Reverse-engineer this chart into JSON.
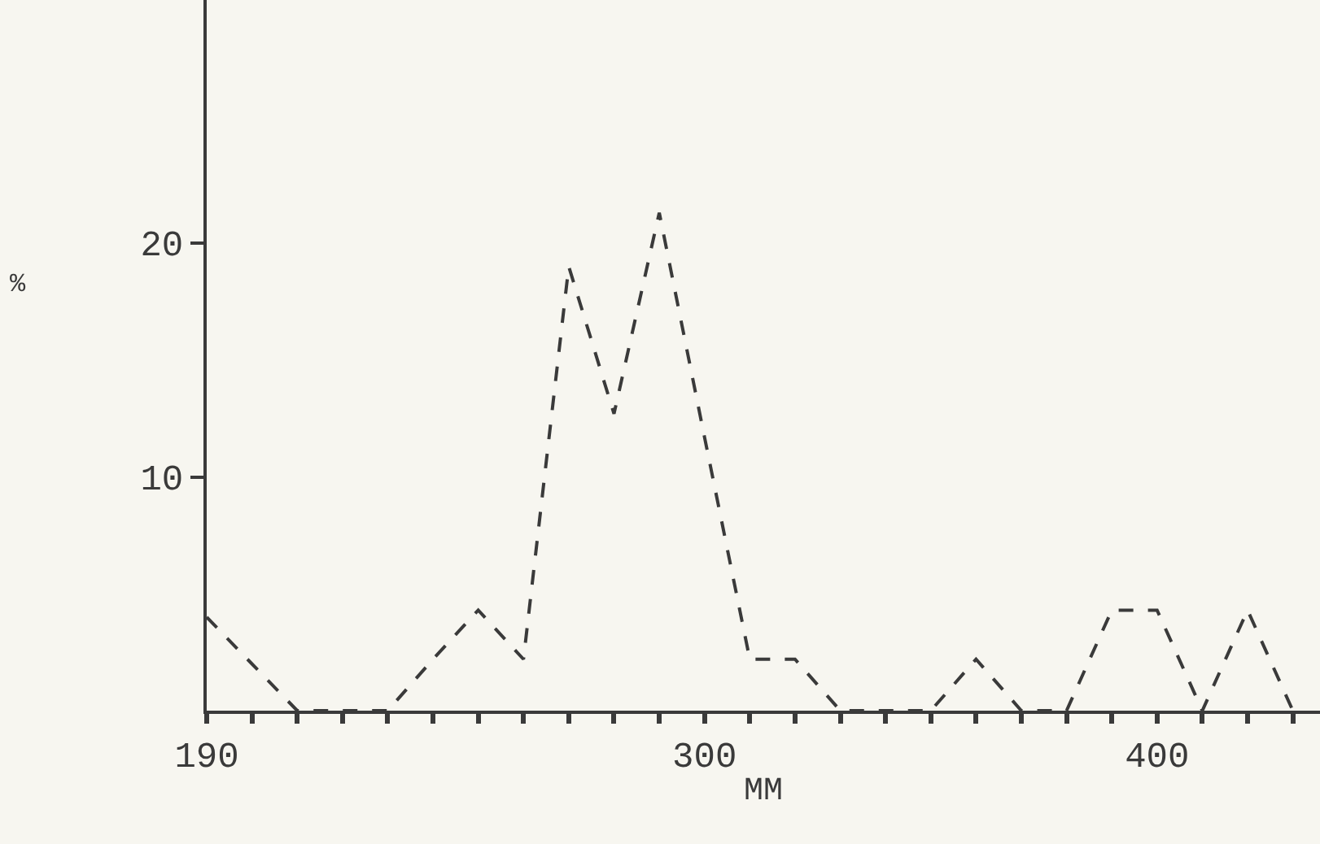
{
  "chart_data": {
    "type": "line",
    "xlabel": "MM",
    "ylabel": "%",
    "x": [
      190,
      200,
      210,
      220,
      230,
      240,
      250,
      260,
      270,
      280,
      290,
      300,
      310,
      320,
      330,
      340,
      350,
      360,
      370,
      380,
      390,
      400,
      410,
      420,
      430
    ],
    "series": [
      {
        "color": "#3a3a3a",
        "values": [
          4,
          2,
          0,
          0,
          0,
          2.2,
          4.3,
          2.2,
          19,
          12.7,
          21.3,
          11.7,
          2.2,
          2.2,
          0,
          0,
          0,
          2.2,
          0,
          0,
          4.3,
          4.3,
          0,
          4.3,
          0
        ]
      }
    ],
    "xlim": [
      190,
      436
    ],
    "ylim": [
      0,
      30.4
    ],
    "xticks": [
      190,
      {
        "value": 200,
        "label": null
      },
      {
        "value": 210,
        "label": null
      },
      {
        "value": 220,
        "label": null
      },
      {
        "value": 230,
        "label": null
      },
      {
        "value": 240,
        "label": null
      },
      {
        "value": 250,
        "label": null
      },
      {
        "value": 260,
        "label": null
      },
      {
        "value": 270,
        "label": null
      },
      {
        "value": 280,
        "label": null
      },
      {
        "value": 290,
        "label": null
      },
      300,
      {
        "value": 310,
        "label": null
      },
      {
        "value": 320,
        "label": null
      },
      {
        "value": 330,
        "label": null
      },
      {
        "value": 340,
        "label": null
      },
      {
        "value": 350,
        "label": null
      },
      {
        "value": 360,
        "label": null
      },
      {
        "value": 370,
        "label": null
      },
      {
        "value": 380,
        "label": null
      },
      {
        "value": 390,
        "label": null
      },
      400,
      {
        "value": 410,
        "label": null
      },
      {
        "value": 420,
        "label": null
      },
      {
        "value": 430,
        "label": null
      }
    ],
    "yticks": [
      10,
      20
    ],
    "grid": false,
    "marker": "none",
    "line_style": "dashed"
  }
}
